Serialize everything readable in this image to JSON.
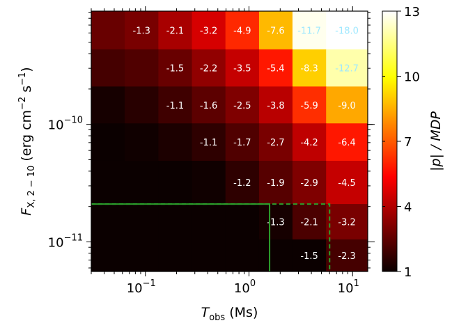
{
  "chart_data": {
    "type": "heatmap",
    "x_scale": "log",
    "y_scale": "log",
    "xlabel_main": "T",
    "xlabel_sub": "obs",
    "xlabel_unit": " (Ms)",
    "ylabel_main": "F",
    "ylabel_sub": "X, 2 − 10",
    "ylabel_unit": " (erg cm",
    "ylabel_exp": "−2",
    "ylabel_unit2": " s",
    "ylabel_exp2": "−1",
    "ylabel_close": ")",
    "xlim": [
      0.03,
      14
    ],
    "ylim": [
      5.6e-12,
      9.2e-10
    ],
    "x_ticks": [
      {
        "value": 0.1,
        "base": "10",
        "exp": "−1"
      },
      {
        "value": 1,
        "base": "10",
        "exp": "0"
      },
      {
        "value": 10,
        "base": "10",
        "exp": "1"
      }
    ],
    "y_ticks": [
      {
        "value": 1e-11,
        "base": "10",
        "exp": "−11"
      },
      {
        "value": 1e-10,
        "base": "10",
        "exp": "−10"
      }
    ],
    "x_bins": [
      0.03,
      0.0631,
      0.1334,
      0.2811,
      0.5925,
      1.25,
      2.63,
      5.55,
      14
    ],
    "y_bins": [
      9.2e-10,
      4.35e-10,
      2.1e-10,
      1.02e-10,
      4.9e-11,
      2.1e-11,
      1.05e-11,
      5.6e-12
    ],
    "values": [
      [
        2.6,
        2.9,
        3.7,
        4.5,
        6.1,
        8.7,
        12.8,
        13.0
      ],
      [
        2.0,
        2.2,
        2.6,
        3.3,
        4.2,
        5.8,
        9.1,
        12.0
      ],
      [
        1.2,
        1.5,
        1.9,
        2.4,
        3.0,
        4.0,
        6.2,
        8.4
      ],
      [
        1.0,
        1.1,
        1.3,
        1.6,
        2.2,
        2.9,
        4.1,
        5.8
      ],
      [
        1.0,
        1.0,
        1.0,
        1.1,
        1.6,
        2.3,
        3.0,
        4.2
      ],
      [
        1.0,
        1.0,
        1.0,
        1.0,
        1.0,
        1.2,
        2.1,
        2.9
      ],
      [
        1.0,
        1.0,
        1.0,
        1.0,
        1.0,
        1.0,
        1.0,
        2.0
      ]
    ],
    "annotations": [
      [
        "",
        "-1.3",
        "-2.1",
        "-3.2",
        "-4.9",
        "-7.6",
        "-11.7",
        "-18.0"
      ],
      [
        "",
        "",
        "-1.5",
        "-2.2",
        "-3.5",
        "-5.4",
        "-8.3",
        "-12.7"
      ],
      [
        "",
        "",
        "-1.1",
        "-1.6",
        "-2.5",
        "-3.8",
        "-5.9",
        "-9.0"
      ],
      [
        "",
        "",
        "",
        "-1.1",
        "-1.7",
        "-2.7",
        "-4.2",
        "-6.4"
      ],
      [
        "",
        "",
        "",
        "",
        "-1.2",
        "-1.9",
        "-2.9",
        "-4.5"
      ],
      [
        "",
        "",
        "",
        "",
        "",
        "-1.3",
        "-2.1",
        "-3.2"
      ],
      [
        "",
        "",
        "",
        "",
        "",
        "",
        "-1.5",
        "-2.3"
      ]
    ],
    "colorbar": {
      "label": "|p| / MDP",
      "min": 1,
      "max": 13,
      "ticks": [
        "1",
        "4",
        "7",
        "10",
        "13"
      ],
      "colormap": "hot"
    },
    "contours": [
      {
        "style": "solid",
        "color": "#2ca02c",
        "x": [
          0.03,
          1.58,
          1.58
        ],
        "y": [
          2.1e-11,
          2.1e-11,
          5.6e-12
        ]
      },
      {
        "style": "dashed",
        "color": "#2ca02c",
        "x": [
          0.03,
          6.0,
          6.0
        ],
        "y": [
          2.1e-11,
          2.1e-11,
          5.6e-12
        ]
      }
    ]
  }
}
